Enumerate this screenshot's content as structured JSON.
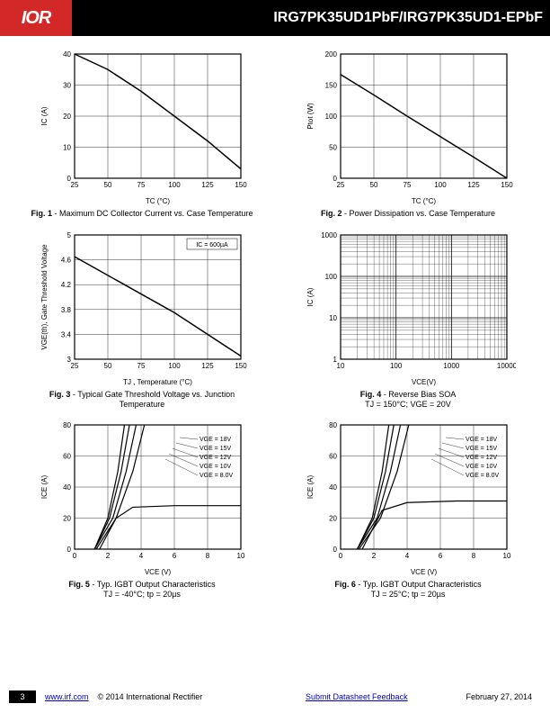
{
  "header": {
    "logo": "IOR",
    "title": "IRG7PK35UD1PbF/IRG7PK35UD1-EPbF"
  },
  "fig1": {
    "type": "line",
    "caption_bold": "Fig. 1",
    "caption_rest": " - Maximum DC Collector Current vs. Case Temperature",
    "xlabel": "TC (°C)",
    "ylabel": "IC (A)",
    "xlim": [
      25,
      150
    ],
    "xticks": [
      25,
      50,
      75,
      100,
      125,
      150
    ],
    "ylim": [
      0,
      40
    ],
    "yticks": [
      0,
      10,
      20,
      30,
      40
    ],
    "data": [
      [
        25,
        40
      ],
      [
        50,
        35
      ],
      [
        75,
        28
      ],
      [
        100,
        20
      ],
      [
        125,
        12
      ],
      [
        150,
        3
      ]
    ],
    "line_color": "#000",
    "grid_color": "#000",
    "bg": "#fff"
  },
  "fig2": {
    "type": "line",
    "caption_bold": "Fig. 2",
    "caption_rest": " - Power  Dissipation vs. Case Temperature",
    "xlabel": "TC (°C)",
    "ylabel": "Ptot (W)",
    "xlim": [
      25,
      150
    ],
    "xticks": [
      25,
      50,
      75,
      100,
      125,
      150
    ],
    "ylim": [
      0,
      200
    ],
    "yticks": [
      0,
      50,
      100,
      150,
      200
    ],
    "data": [
      [
        25,
        167
      ],
      [
        50,
        134
      ],
      [
        75,
        100
      ],
      [
        100,
        67
      ],
      [
        125,
        34
      ],
      [
        150,
        0
      ]
    ],
    "line_color": "#000",
    "grid_color": "#000",
    "bg": "#fff"
  },
  "fig3": {
    "type": "line",
    "caption_bold": "Fig. 3",
    "caption_rest": " - Typical Gate Threshold Voltage vs. Junction Temperature",
    "xlabel": "TJ , Temperature (°C)",
    "ylabel": "VGE(th), Gate Threshold Voltage",
    "annotation": "IC = 600µA",
    "xlim": [
      25,
      150
    ],
    "xticks": [
      25,
      50,
      75,
      100,
      125,
      150
    ],
    "ylim": [
      3.0,
      5.0
    ],
    "yticks": [
      3.0,
      3.4,
      3.8,
      4.2,
      4.6,
      5.0
    ],
    "data": [
      [
        25,
        4.65
      ],
      [
        50,
        4.35
      ],
      [
        75,
        4.05
      ],
      [
        100,
        3.75
      ],
      [
        125,
        3.4
      ],
      [
        150,
        3.05
      ]
    ],
    "line_color": "#000",
    "grid_color": "#000",
    "bg": "#fff"
  },
  "fig4": {
    "type": "loglog-grid",
    "caption_bold": "Fig. 4",
    "caption_rest": " - Reverse Bias SOA",
    "subcaption": "TJ = 150°C; VGE = 20V",
    "xlabel": "VCE(V)",
    "ylabel": "IC (A)",
    "xlim": [
      10,
      10000
    ],
    "xticks": [
      10,
      100,
      1000,
      10000
    ],
    "ylim": [
      1,
      1000
    ],
    "yticks": [
      1,
      10,
      100,
      1000
    ],
    "line_color": "#000",
    "grid_color": "#000",
    "bg": "#fff"
  },
  "fig5": {
    "type": "multiline",
    "caption_bold": "Fig. 5",
    "caption_rest": " - Typ. IGBT Output Characteristics",
    "subcaption": "TJ = -40°C; tp = 20µs",
    "xlabel": "VCE (V)",
    "ylabel": "ICE (A)",
    "xlim": [
      0,
      10
    ],
    "xticks": [
      0,
      2,
      4,
      6,
      8,
      10
    ],
    "ylim": [
      0,
      80
    ],
    "yticks": [
      0,
      20,
      40,
      60,
      80
    ],
    "legend": [
      "VGE = 18V",
      "VGE = 15V",
      "VGE = 12V",
      "VGE = 10V",
      "VGE = 8.0V"
    ],
    "series": [
      [
        [
          1.2,
          0
        ],
        [
          2.0,
          20
        ],
        [
          2.6,
          50
        ],
        [
          3.0,
          80
        ]
      ],
      [
        [
          1.2,
          0
        ],
        [
          2.1,
          20
        ],
        [
          2.8,
          50
        ],
        [
          3.3,
          80
        ]
      ],
      [
        [
          1.2,
          0
        ],
        [
          2.3,
          20
        ],
        [
          3.1,
          50
        ],
        [
          3.7,
          80
        ]
      ],
      [
        [
          1.3,
          0
        ],
        [
          2.5,
          20
        ],
        [
          3.5,
          50
        ],
        [
          4.2,
          80
        ]
      ],
      [
        [
          1.5,
          0
        ],
        [
          2.5,
          20
        ],
        [
          3.5,
          27
        ],
        [
          6,
          28
        ],
        [
          10,
          28
        ]
      ]
    ],
    "line_color": "#000",
    "grid_color": "#000",
    "bg": "#fff"
  },
  "fig6": {
    "type": "multiline",
    "caption_bold": "Fig. 6",
    "caption_rest": " - Typ. IGBT Output Characteristics",
    "subcaption": "TJ = 25°C; tp = 20µs",
    "xlabel": "VCE (V)",
    "ylabel": "ICE (A)",
    "xlim": [
      0,
      10
    ],
    "xticks": [
      0,
      2,
      4,
      6,
      8,
      10
    ],
    "ylim": [
      0,
      80
    ],
    "yticks": [
      0,
      20,
      40,
      60,
      80
    ],
    "legend": [
      "VGE = 18V",
      "VGE = 15V",
      "VGE = 12V",
      "VGE = 10V",
      "VGE = 8.0V"
    ],
    "series": [
      [
        [
          1.0,
          0
        ],
        [
          1.9,
          20
        ],
        [
          2.5,
          50
        ],
        [
          2.9,
          80
        ]
      ],
      [
        [
          1.0,
          0
        ],
        [
          2.0,
          20
        ],
        [
          2.7,
          50
        ],
        [
          3.2,
          80
        ]
      ],
      [
        [
          1.0,
          0
        ],
        [
          2.2,
          20
        ],
        [
          3.0,
          50
        ],
        [
          3.6,
          80
        ]
      ],
      [
        [
          1.1,
          0
        ],
        [
          2.4,
          20
        ],
        [
          3.4,
          50
        ],
        [
          4.1,
          80
        ]
      ],
      [
        [
          1.3,
          0
        ],
        [
          2.5,
          25
        ],
        [
          4,
          30
        ],
        [
          7,
          31
        ],
        [
          10,
          31
        ]
      ]
    ],
    "line_color": "#000",
    "grid_color": "#000",
    "bg": "#fff"
  },
  "footer": {
    "page": "3",
    "url": "www.irf.com",
    "copyright": "© 2014 International Rectifier",
    "feedback": "Submit Datasheet Feedback",
    "date": "February 27, 2014"
  }
}
